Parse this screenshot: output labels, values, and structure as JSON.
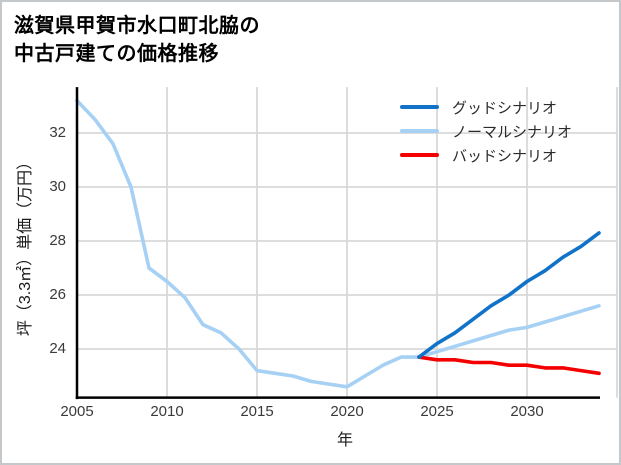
{
  "title": {
    "line1": "滋賀県甲賀市水口町北脇の",
    "line2": "中古戸建ての価格推移"
  },
  "legend": {
    "items": [
      {
        "label": "グッドシナリオ",
        "color": "#1173c8"
      },
      {
        "label": "ノーマルシナリオ",
        "color": "#a6d1f4"
      },
      {
        "label": "バッドシナリオ",
        "color": "#f40000"
      }
    ]
  },
  "colors": {
    "good_scenario": "#1173c8",
    "normal_scenario": "#a6d1f4",
    "bad_scenario": "#f40000",
    "gridline": "#d8d8d8",
    "spine": "#000000",
    "tick_text": "#3a3a3a"
  },
  "chart_data": {
    "type": "line",
    "title": "滋賀県甲賀市水口町北脇の中古戸建ての価格推移",
    "xlabel": "年",
    "ylabel": "坪（3.3㎡）単価（万円）",
    "unit": "万円/坪",
    "x_ticks": [
      2005,
      2010,
      2015,
      2020,
      2025,
      2030
    ],
    "y_ticks": [
      24,
      26,
      28,
      30,
      32
    ],
    "xlim": [
      2005,
      2035
    ],
    "ylim": [
      22.2,
      33.7
    ],
    "grid": true,
    "legend_position": "upper right",
    "series": [
      {
        "name": "ノーマルシナリオ",
        "color": "#a6d1f4",
        "x": [
          2005,
          2006,
          2007,
          2008,
          2009,
          2010,
          2011,
          2012,
          2013,
          2014,
          2015,
          2016,
          2017,
          2018,
          2019,
          2020,
          2021,
          2022,
          2023,
          2024,
          2025,
          2026,
          2027,
          2028,
          2029,
          2030,
          2031,
          2032,
          2033,
          2034
        ],
        "values": [
          33.2,
          32.5,
          31.6,
          30.0,
          27.0,
          26.5,
          25.9,
          24.9,
          24.6,
          24.0,
          23.2,
          23.1,
          23.0,
          22.8,
          22.7,
          22.6,
          23.0,
          23.4,
          23.7,
          23.7,
          23.9,
          24.1,
          24.3,
          24.5,
          24.7,
          24.8,
          25.0,
          25.2,
          25.4,
          25.6
        ]
      },
      {
        "name": "グッドシナリオ",
        "color": "#1173c8",
        "x": [
          2024,
          2025,
          2026,
          2027,
          2028,
          2029,
          2030,
          2031,
          2032,
          2033,
          2034
        ],
        "values": [
          23.7,
          24.2,
          24.6,
          25.1,
          25.6,
          26.0,
          26.5,
          26.9,
          27.4,
          27.8,
          28.3
        ]
      },
      {
        "name": "バッドシナリオ",
        "color": "#f40000",
        "x": [
          2024,
          2025,
          2026,
          2027,
          2028,
          2029,
          2030,
          2031,
          2032,
          2033,
          2034
        ],
        "values": [
          23.7,
          23.6,
          23.6,
          23.5,
          23.5,
          23.4,
          23.4,
          23.3,
          23.3,
          23.2,
          23.1
        ]
      }
    ]
  }
}
